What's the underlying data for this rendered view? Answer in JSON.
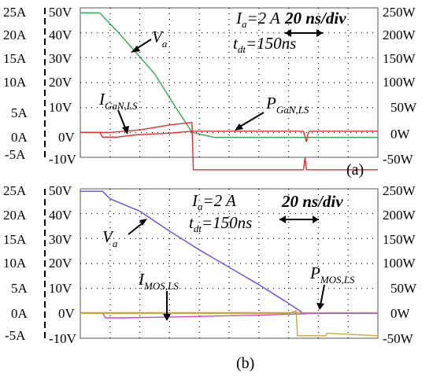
{
  "chart_data": [
    {
      "type": "line",
      "panel_label": "(a)",
      "annotations": {
        "current_label": "I",
        "current_eq": "a",
        "current_value": "=2 A",
        "time_label": "t",
        "time_sub": "dt",
        "time_value": "=150ns",
        "scale": "20 ns/div",
        "va": "V",
        "va_sub": "a",
        "i_label": "I",
        "i_sub": "GaN,LS",
        "p_label": "P",
        "p_sub": "GaN,LS"
      },
      "axes": {
        "current_ticks": [
          "25A",
          "20A",
          "15A",
          "10A",
          "5A",
          "0A",
          "-5A"
        ],
        "voltage_ticks": [
          "50V",
          "40V",
          "30V",
          "20V",
          "10V",
          "0V",
          "-10V"
        ],
        "power_ticks": [
          "250W",
          "200W",
          "150W",
          "100W",
          "50W",
          "0W",
          "-50W"
        ],
        "current_range": [
          -5,
          25
        ],
        "voltage_range": [
          -10,
          50
        ],
        "power_range": [
          -50,
          250
        ],
        "x_range_ns": [
          0,
          200
        ]
      },
      "series": [
        {
          "color": "#2fa84f",
          "x": [
            0,
            13,
            25,
            50,
            62,
            75,
            90,
            200
          ],
          "y": [
            48,
            48,
            40.5,
            23.5,
            12,
            0,
            -2,
            -2
          ]
        },
        {
          "color": "#e03030",
          "x": [
            0,
            13,
            15,
            25,
            30,
            37,
            50,
            62,
            75,
            150,
            152,
            153,
            154,
            160,
            200
          ],
          "y": [
            0,
            0,
            -1.9,
            -1.9,
            -1.5,
            -1,
            -0.6,
            -0.2,
            0.5,
            0.5,
            -3.8,
            -0.5,
            0.5,
            0.5,
            0.5
          ]
        },
        {
          "color": "#e03030",
          "x": [
            0,
            20,
            40,
            60,
            75,
            76,
            100,
            150,
            151,
            152,
            160,
            200
          ],
          "y": [
            0,
            0,
            1,
            3,
            4,
            -15,
            -15,
            -15,
            -10,
            -15,
            -15,
            -15
          ]
        }
      ]
    },
    {
      "type": "line",
      "panel_label": "(b)",
      "annotations": {
        "current_label": "I",
        "current_eq": "a",
        "current_value": "=2 A",
        "time_label": "t",
        "time_sub": "dt",
        "time_value": "=150ns",
        "scale": "20 ns/div",
        "va": "V",
        "va_sub": "a",
        "i_label": "I",
        "i_sub": "MOS,LS",
        "p_label": "P",
        "p_sub": "MOS,LS"
      },
      "axes": {
        "current_ticks": [
          "25A",
          "20A",
          "15A",
          "10A",
          "5A",
          "0A",
          "-5A"
        ],
        "voltage_ticks": [
          "50V",
          "40V",
          "30V",
          "20V",
          "10V",
          "0V",
          "-10V"
        ],
        "power_ticks": [
          "250W",
          "200W",
          "150W",
          "100W",
          "50W",
          "0W",
          "-50W"
        ],
        "current_range": [
          -5,
          25
        ],
        "voltage_range": [
          -10,
          50
        ],
        "power_range": [
          -50,
          250
        ],
        "x_range_ns": [
          0,
          200
        ]
      },
      "series": [
        {
          "color": "#5a4ee0",
          "x": [
            0,
            15,
            20,
            40,
            60,
            80,
            100,
            120,
            140,
            150,
            200
          ],
          "y": [
            49,
            49,
            46,
            41,
            33,
            25.5,
            18.5,
            11.5,
            4,
            0,
            0
          ]
        },
        {
          "color": "#cc44dd",
          "x": [
            0,
            15,
            17,
            30,
            60,
            90,
            120,
            150,
            160,
            200
          ],
          "y": [
            0,
            0,
            -1.8,
            -1.8,
            -1.5,
            -1.1,
            -0.7,
            -0.2,
            0.2,
            0.2
          ]
        },
        {
          "color": "#c8a832",
          "x": [
            0,
            100,
            140,
            145,
            146,
            150,
            156,
            165,
            166,
            200
          ],
          "y": [
            0,
            0,
            0,
            1,
            -9,
            -9,
            -9,
            -9,
            -8,
            -9
          ]
        },
        {
          "color": "#c8a832",
          "x": [
            0,
            200
          ],
          "y": [
            0.3,
            0.3
          ]
        }
      ]
    }
  ]
}
